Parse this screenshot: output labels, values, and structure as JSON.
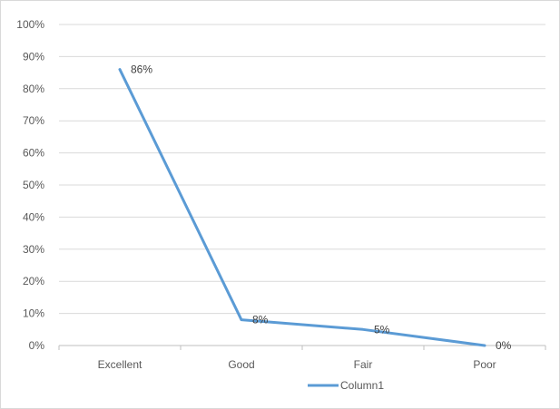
{
  "chart_data": {
    "type": "line",
    "categories": [
      "Excellent",
      "Good",
      "Fair",
      "Poor"
    ],
    "series": [
      {
        "name": "Column1",
        "values": [
          0.86,
          0.08,
          0.05,
          0.0
        ],
        "data_labels": [
          "86%",
          "8%",
          "5%",
          "0%"
        ],
        "color": "#5b9bd5"
      }
    ],
    "y_ticks": [
      "0%",
      "10%",
      "20%",
      "30%",
      "40%",
      "50%",
      "60%",
      "70%",
      "80%",
      "90%",
      "100%"
    ],
    "ylim": [
      0,
      1
    ],
    "title": "",
    "xlabel": "",
    "ylabel": "",
    "grid": true,
    "legend_position": "bottom",
    "colors": {
      "gridline": "#d9d9d9",
      "axis": "#bfbfbf",
      "text": "#595959"
    }
  }
}
